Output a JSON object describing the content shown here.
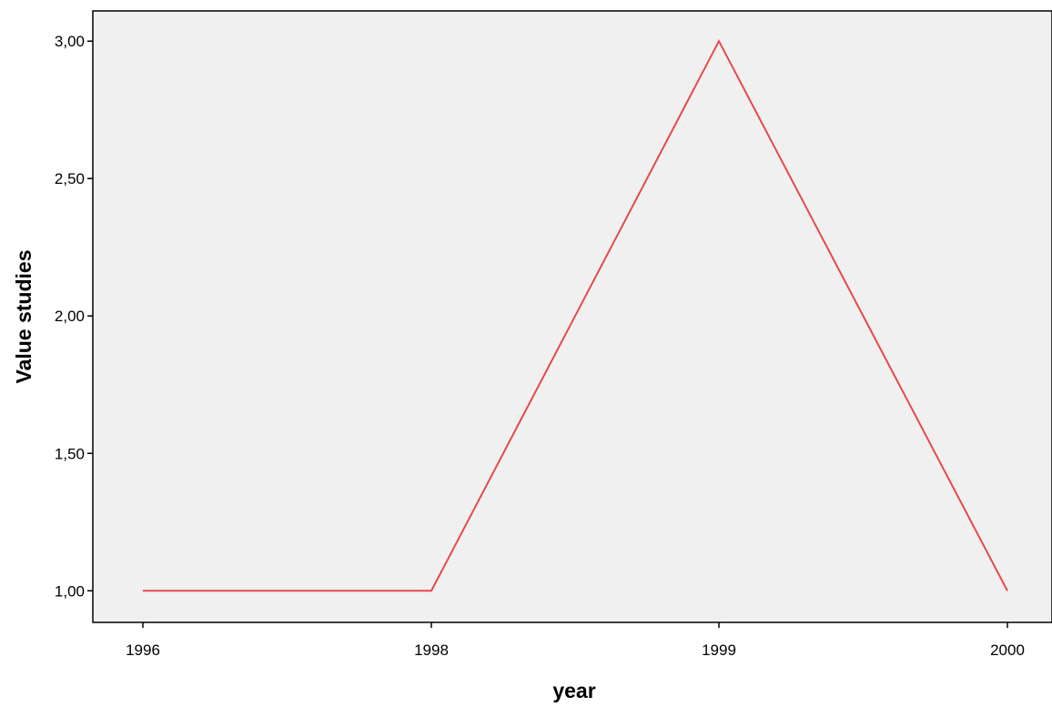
{
  "chart_data": {
    "type": "line",
    "title": "",
    "xlabel": "year",
    "ylabel": "Value studies",
    "categories": [
      "1996",
      "1998",
      "1999",
      "2000"
    ],
    "series": [
      {
        "values": [
          1.0,
          1.0,
          3.0,
          1.0
        ]
      }
    ],
    "y_ticks": [
      {
        "value": 1.0,
        "label": "1,00"
      },
      {
        "value": 1.5,
        "label": "1,50"
      },
      {
        "value": 2.0,
        "label": "2,00"
      },
      {
        "value": 2.5,
        "label": "2,50"
      },
      {
        "value": 3.0,
        "label": "3,00"
      }
    ],
    "ylim": [
      0.885,
      3.11
    ],
    "grid": false,
    "legend": "none"
  },
  "colors": {
    "line": "#e8474d",
    "plot_background": "#f0f0f0",
    "axis": "#000000"
  }
}
